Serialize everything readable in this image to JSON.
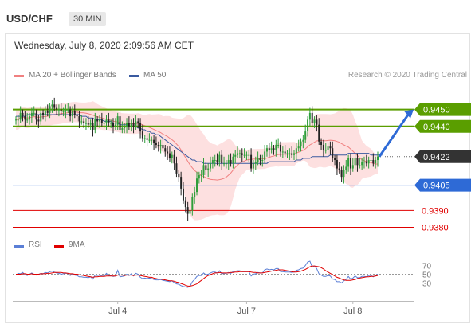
{
  "header": {
    "symbol": "USD/CHF",
    "timeframe": "30 MIN"
  },
  "timestamp": "Wednesday, July 8, 2020 2:09:56 AM CET",
  "legend": {
    "ma20": "MA 20 + Bollinger Bands",
    "ma50": "MA 50",
    "ma20_color": "#f08080",
    "ma50_color": "#3a5aa0"
  },
  "credit": "Research © 2020 Trading Central",
  "rsi_legend": {
    "rsi": "RSI",
    "ma9": "9MA",
    "rsi_color": "#5b7fd6",
    "ma9_color": "#e00000"
  },
  "chart_data": [
    {
      "type": "candlestick",
      "ylim": [
        0.9375,
        0.9465
      ],
      "x_labels": [
        {
          "label": "Jul 4",
          "index": 45
        },
        {
          "label": "Jul 7",
          "index": 102
        },
        {
          "label": "Jul 8",
          "index": 149
        }
      ],
      "close": [
        0.9444,
        0.9444,
        0.9448,
        0.9446,
        0.9444,
        0.9444,
        0.9446,
        0.9448,
        0.9448,
        0.9444,
        0.9443,
        0.9448,
        0.9447,
        0.9449,
        0.9448,
        0.9452,
        0.9453,
        0.9451,
        0.945,
        0.945,
        0.9449,
        0.9449,
        0.945,
        0.945,
        0.9446,
        0.9449,
        0.9447,
        0.9446,
        0.9443,
        0.9443,
        0.9442,
        0.9442,
        0.9441,
        0.9442,
        0.9438,
        0.9444,
        0.9443,
        0.9444,
        0.9442,
        0.9442,
        0.9444,
        0.9442,
        0.9442,
        0.944,
        0.9441,
        0.9446,
        0.9438,
        0.9439,
        0.944,
        0.9442,
        0.944,
        0.9442,
        0.944,
        0.9443,
        0.9442,
        0.9437,
        0.9433,
        0.9433,
        0.9432,
        0.9432,
        0.9432,
        0.943,
        0.9429,
        0.9428,
        0.9429,
        0.9427,
        0.9425,
        0.9424,
        0.9421,
        0.9423,
        0.9418,
        0.9412,
        0.941,
        0.9403,
        0.9396,
        0.9392,
        0.9388,
        0.939,
        0.9398,
        0.9401,
        0.9409,
        0.9411,
        0.9411,
        0.9417,
        0.9414,
        0.9415,
        0.9418,
        0.942,
        0.942,
        0.9419,
        0.9423,
        0.9418,
        0.9418,
        0.9418,
        0.942,
        0.9418,
        0.9422,
        0.9423,
        0.9424,
        0.9424,
        0.9423,
        0.9423,
        0.9423,
        0.9423,
        0.9415,
        0.9418,
        0.9419,
        0.9421,
        0.942,
        0.942,
        0.9425,
        0.9427,
        0.9426,
        0.9427,
        0.9426,
        0.9429,
        0.9429,
        0.9425,
        0.9425,
        0.9424,
        0.9424,
        0.9424,
        0.9423,
        0.9424,
        0.9427,
        0.9428,
        0.9431,
        0.9432,
        0.9437,
        0.9444,
        0.9448,
        0.9442,
        0.9444,
        0.9441,
        0.9431,
        0.9429,
        0.9426,
        0.9426,
        0.9428,
        0.9427,
        0.9421,
        0.942,
        0.9415,
        0.9414,
        0.941,
        0.9414,
        0.9416,
        0.9421,
        0.9415,
        0.9417,
        0.9421,
        0.9417,
        0.9417,
        0.9419,
        0.9419,
        0.9418,
        0.942,
        0.942,
        0.9418,
        0.942,
        0.9422
      ],
      "ma50": [
        0.9446,
        0.9446,
        0.9446,
        0.9446,
        0.9446,
        0.9447,
        0.9447,
        0.9447,
        0.9447,
        0.9447,
        0.9447,
        0.9447,
        0.9447,
        0.9447,
        0.9447,
        0.9447,
        0.9447,
        0.9447,
        0.9447,
        0.9447,
        0.9447,
        0.9447,
        0.9447,
        0.9447,
        0.9447,
        0.9447,
        0.9447,
        0.9447,
        0.9447,
        0.9446,
        0.9446,
        0.9446,
        0.9445,
        0.9445,
        0.9445,
        0.9444,
        0.9444,
        0.9444,
        0.9444,
        0.9443,
        0.9443,
        0.9443,
        0.9443,
        0.9442,
        0.9442,
        0.9442,
        0.9441,
        0.9441,
        0.9441,
        0.9441,
        0.944,
        0.944,
        0.944,
        0.944,
        0.9439,
        0.9439,
        0.9438,
        0.9438,
        0.9437,
        0.9437,
        0.9436,
        0.9436,
        0.9435,
        0.9435,
        0.9434,
        0.9433,
        0.9432,
        0.9431,
        0.943,
        0.9429,
        0.9428,
        0.9427,
        0.9426,
        0.9425,
        0.9424,
        0.9423,
        0.9422,
        0.9421,
        0.942,
        0.942,
        0.9419,
        0.9419,
        0.9419,
        0.9418,
        0.9418,
        0.9418,
        0.9418,
        0.9418,
        0.9418,
        0.9418,
        0.9418,
        0.9418,
        0.9418,
        0.9418,
        0.9418,
        0.9418,
        0.9418,
        0.9418,
        0.9418,
        0.9418,
        0.9418,
        0.9418,
        0.9418,
        0.9418,
        0.9418,
        0.9418,
        0.9418,
        0.9418,
        0.9418,
        0.9418,
        0.9418,
        0.9418,
        0.9419,
        0.9419,
        0.9419,
        0.9419,
        0.9419,
        0.9419,
        0.9419,
        0.9419,
        0.9419,
        0.9419,
        0.9419,
        0.9419,
        0.942,
        0.942,
        0.942,
        0.9421,
        0.9421,
        0.9421,
        0.9421,
        0.9422,
        0.9422,
        0.9422,
        0.9422,
        0.9422,
        0.9422,
        0.9422,
        0.9422,
        0.9423,
        0.9423,
        0.9423,
        0.9423,
        0.9423,
        0.9423,
        0.9423,
        0.9423,
        0.9424,
        0.9424,
        0.9424,
        0.9424,
        0.9424,
        0.9424,
        0.9424,
        0.9424,
        0.9424,
        0.9424,
        0.9423,
        0.9423,
        0.9423,
        0.9423,
        0.9423,
        0.9423
      ],
      "levels": [
        {
          "value": 0.945,
          "label": "0.9450",
          "kind": "resistance",
          "color": "#5a9e00"
        },
        {
          "value": 0.944,
          "label": "0.9440",
          "kind": "resistance",
          "color": "#5a9e00"
        },
        {
          "value": 0.9422,
          "label": "0.9422",
          "kind": "last",
          "color": "#333333"
        },
        {
          "value": 0.9405,
          "label": "0.9405",
          "kind": "pivot",
          "color": "#2e6ad6"
        },
        {
          "value": 0.939,
          "label": "0.9390",
          "kind": "support",
          "color": "#e00000"
        },
        {
          "value": 0.938,
          "label": "0.9380",
          "kind": "support",
          "color": "#e00000"
        }
      ],
      "forecast": {
        "from": 0.9422,
        "to": 0.945
      },
      "colors": {
        "up": "#2e9e3a",
        "down": "#222222",
        "band": "#fde0e0"
      }
    },
    {
      "type": "line",
      "ylim": [
        0,
        100
      ],
      "y_ticks": [
        {
          "value": 70,
          "label": "70"
        },
        {
          "value": 50,
          "label": "50"
        },
        {
          "value": 30,
          "label": "30"
        }
      ],
      "series": [
        {
          "name": "RSI",
          "values": [
            48,
            52,
            51,
            54,
            49,
            47,
            50,
            53,
            50,
            48,
            49,
            52,
            51,
            54,
            53,
            56,
            57,
            55,
            53,
            52,
            50,
            51,
            52,
            52,
            47,
            50,
            48,
            47,
            44,
            44,
            43,
            43,
            42,
            44,
            39,
            48,
            47,
            48,
            46,
            46,
            52,
            47,
            47,
            45,
            46,
            59,
            44,
            45,
            46,
            50,
            47,
            51,
            46,
            52,
            50,
            43,
            40,
            41,
            40,
            41,
            40,
            38,
            37,
            37,
            38,
            36,
            35,
            34,
            33,
            35,
            31,
            28,
            27,
            24,
            22,
            21,
            20,
            23,
            33,
            38,
            45,
            47,
            47,
            53,
            49,
            50,
            53,
            55,
            55,
            53,
            58,
            51,
            52,
            52,
            54,
            52,
            56,
            57,
            58,
            58,
            56,
            56,
            56,
            56,
            46,
            50,
            51,
            54,
            53,
            53,
            60,
            62,
            60,
            61,
            60,
            63,
            63,
            56,
            56,
            55,
            55,
            55,
            54,
            55,
            59,
            60,
            63,
            64,
            70,
            78,
            80,
            66,
            69,
            63,
            51,
            48,
            45,
            45,
            47,
            46,
            39,
            38,
            33,
            33,
            30,
            35,
            38,
            45,
            39,
            41,
            46,
            42,
            42,
            45,
            45,
            44,
            47,
            47,
            44,
            47,
            50
          ]
        },
        {
          "name": "9MA",
          "values": [
            50,
            50,
            50,
            51,
            51,
            50,
            50,
            51,
            50,
            50,
            50,
            51,
            51,
            51,
            52,
            52,
            53,
            54,
            54,
            54,
            54,
            53,
            53,
            52,
            51,
            51,
            50,
            50,
            49,
            48,
            47,
            46,
            45,
            44,
            43,
            44,
            44,
            45,
            45,
            45,
            46,
            46,
            46,
            46,
            46,
            48,
            48,
            48,
            47,
            48,
            48,
            48,
            47,
            48,
            48,
            47,
            46,
            45,
            44,
            43,
            43,
            41,
            40,
            39,
            39,
            38,
            37,
            36,
            35,
            35,
            34,
            32,
            31,
            29,
            27,
            25,
            23,
            23,
            24,
            26,
            28,
            32,
            36,
            40,
            44,
            47,
            49,
            51,
            53,
            53,
            54,
            53,
            53,
            53,
            53,
            54,
            54,
            55,
            55,
            56,
            56,
            56,
            56,
            56,
            55,
            54,
            54,
            53,
            53,
            53,
            54,
            55,
            56,
            57,
            58,
            59,
            60,
            60,
            60,
            59,
            58,
            57,
            56,
            55,
            55,
            56,
            57,
            59,
            61,
            64,
            67,
            69,
            69,
            68,
            67,
            65,
            62,
            58,
            55,
            52,
            49,
            46,
            43,
            41,
            39,
            37,
            36,
            36,
            36,
            37,
            38,
            40,
            41,
            42,
            43,
            44,
            44,
            45,
            45,
            46,
            47
          ]
        }
      ]
    }
  ]
}
